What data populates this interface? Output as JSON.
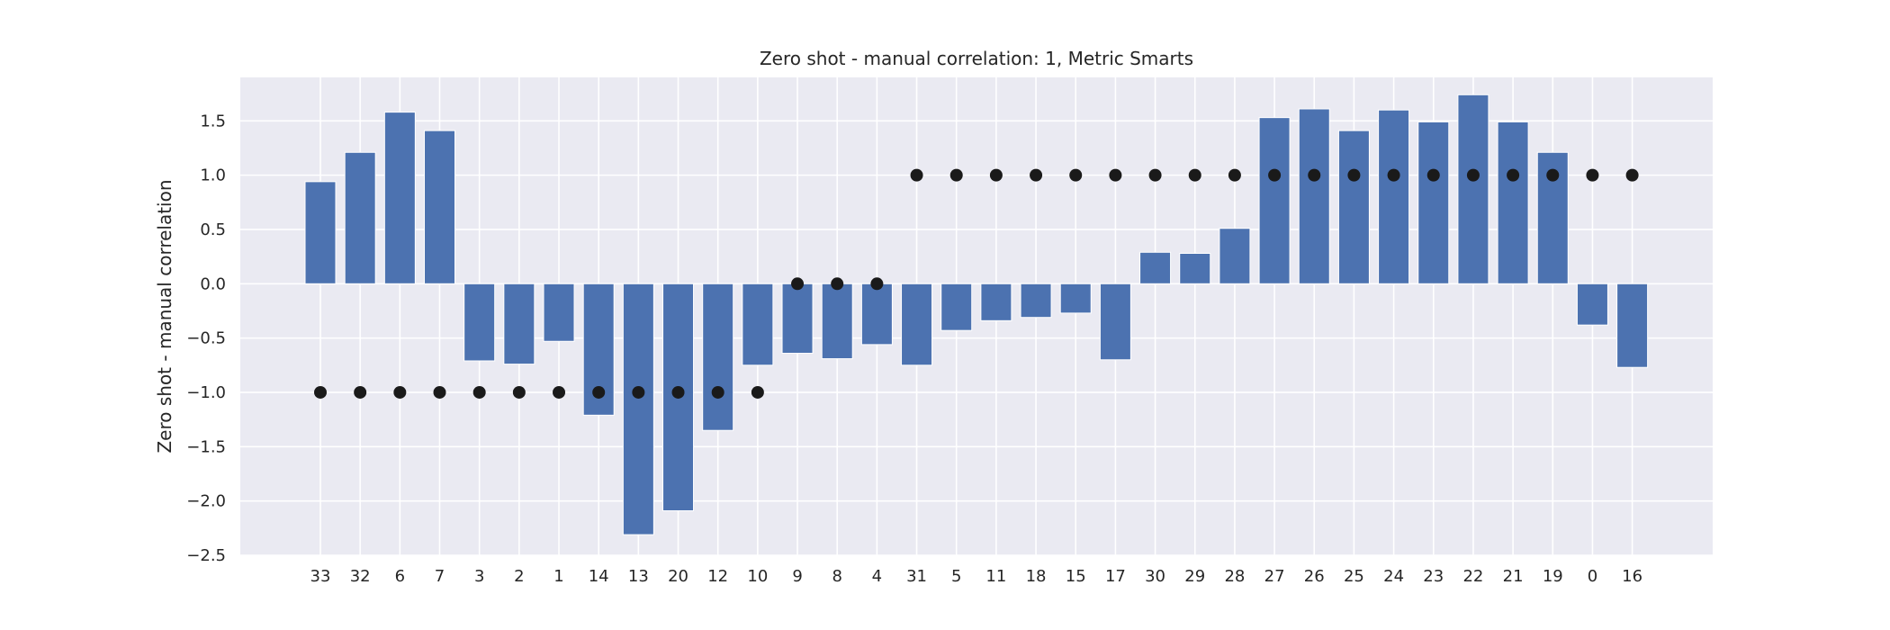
{
  "chart_data": {
    "type": "bar",
    "title": "Zero shot - manual correlation: 1, Metric Smarts",
    "xlabel": "",
    "ylabel": "Zero shot - manual correlation",
    "categories": [
      "33",
      "32",
      "6",
      "7",
      "3",
      "2",
      "1",
      "14",
      "13",
      "20",
      "12",
      "10",
      "9",
      "8",
      "4",
      "31",
      "5",
      "11",
      "18",
      "15",
      "17",
      "30",
      "29",
      "28",
      "27",
      "26",
      "25",
      "24",
      "23",
      "22",
      "21",
      "19",
      "0",
      "16"
    ],
    "series": [
      {
        "type": "bar",
        "values": [
          0.94,
          1.21,
          1.58,
          1.41,
          -0.71,
          -0.74,
          -0.53,
          -1.21,
          -2.31,
          -2.09,
          -1.35,
          -0.75,
          -0.64,
          -0.69,
          -0.56,
          -0.75,
          -0.43,
          -0.34,
          -0.31,
          -0.27,
          -0.7,
          0.29,
          0.28,
          0.51,
          1.53,
          1.61,
          1.41,
          1.6,
          1.49,
          1.74,
          1.49,
          1.21,
          -0.38,
          -0.77
        ],
        "color": "#4c72b0"
      },
      {
        "type": "scatter",
        "values": [
          -1,
          -1,
          -1,
          -1,
          -1,
          -1,
          -1,
          -1,
          -1,
          -1,
          -1,
          -1,
          0,
          0,
          0,
          1,
          1,
          1,
          1,
          1,
          1,
          1,
          1,
          1,
          1,
          1,
          1,
          1,
          1,
          1,
          1,
          1,
          1,
          1
        ],
        "color": "#1a1a1a"
      }
    ],
    "ylim": [
      -2.5,
      1.9
    ],
    "yticks": [
      -2.5,
      -2.0,
      -1.5,
      -1.0,
      -0.5,
      0.0,
      0.5,
      1.0,
      1.5
    ],
    "ytick_labels": [
      "−2.5",
      "−2.0",
      "−1.5",
      "−1.0",
      "−0.5",
      "0.0",
      "0.5",
      "1.0",
      "1.5"
    ],
    "grid": true,
    "background": "#eaeaf2",
    "grid_color": "#ffffff"
  }
}
